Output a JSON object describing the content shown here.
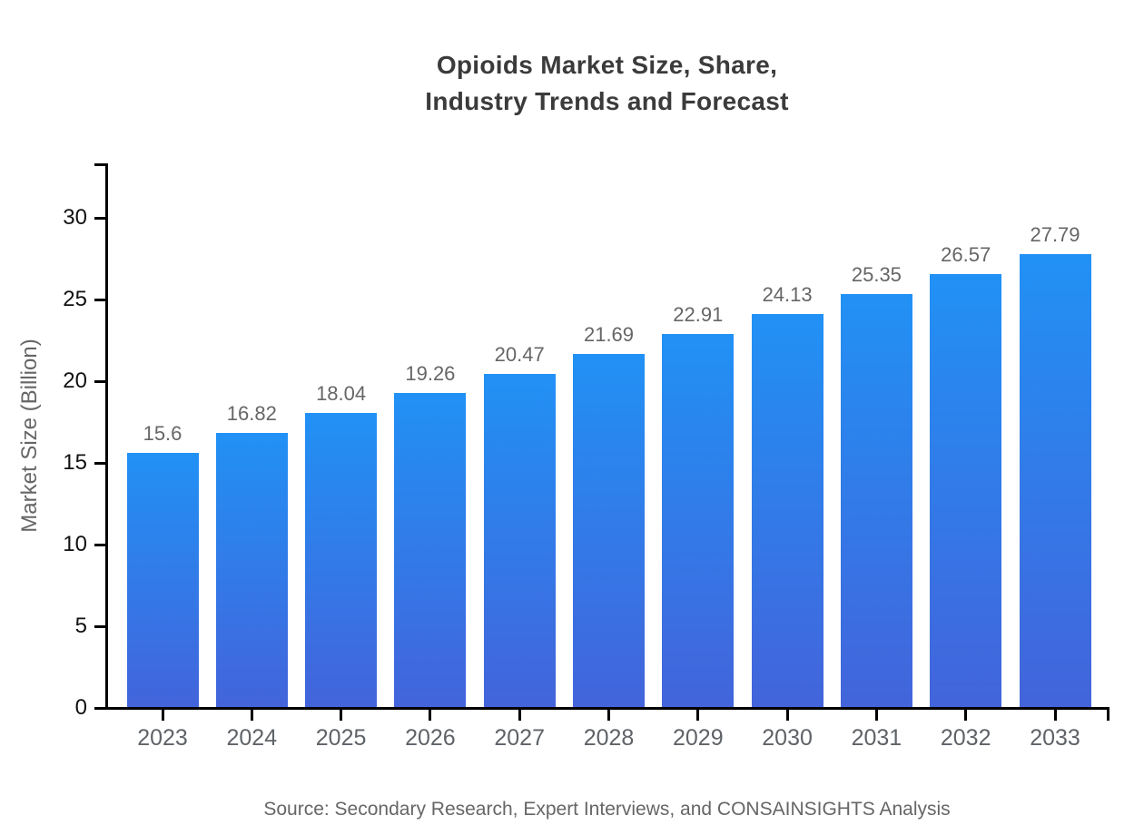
{
  "page": {
    "background_color": "#ffffff"
  },
  "title": {
    "line1": "Opioids Market Size, Share,",
    "line2": "Industry Trends and Forecast"
  },
  "source_note": "Source: Secondary Research, Expert Interviews, and CONSAINSIGHTS Analysis",
  "chart_data": {
    "type": "bar",
    "title": "Opioids Market Size, Share, Industry Trends and Forecast",
    "categories": [
      "2023",
      "2024",
      "2025",
      "2026",
      "2027",
      "2028",
      "2029",
      "2030",
      "2031",
      "2032",
      "2033"
    ],
    "values": [
      15.6,
      16.82,
      18.04,
      19.26,
      20.47,
      21.69,
      22.91,
      24.13,
      25.35,
      26.57,
      27.79
    ],
    "xlabel": "",
    "ylabel": "Market Size (Billion)",
    "y_ticks": [
      0,
      5,
      10,
      15,
      20,
      25,
      30
    ],
    "ylim": [
      0,
      33.3
    ],
    "grid": false,
    "legend_position": "none",
    "value_labels_shown": true,
    "colors": {
      "bar_gradient_top": "#2191F5",
      "bar_gradient_bottom": "#4364DB",
      "axis": "#000000",
      "y_tick_label": "#111111",
      "x_tick_label": "#5F6368",
      "value_label": "#666666",
      "title": "#3B3B3B",
      "axis_title": "#666666",
      "source": "#666666"
    }
  }
}
